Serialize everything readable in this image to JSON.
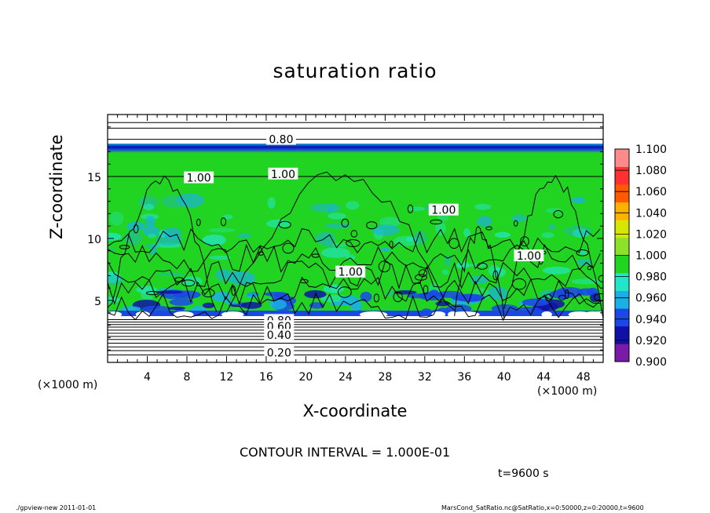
{
  "chart_data": {
    "type": "heatmap",
    "title": "saturation ratio",
    "xlabel": "X-coordinate",
    "ylabel": "Z-coordinate",
    "x_unit": "(×1000 m)",
    "z_unit": "(×1000 m)",
    "xlim": [
      0,
      50
    ],
    "ylim": [
      0,
      20
    ],
    "x_ticks": [
      4,
      8,
      12,
      16,
      20,
      24,
      28,
      32,
      36,
      40,
      44,
      48
    ],
    "y_ticks": [
      5,
      10,
      15
    ],
    "colorbar": {
      "levels": [
        "0.900",
        "0.920",
        "0.940",
        "0.960",
        "0.980",
        "1.000",
        "1.020",
        "1.040",
        "1.060",
        "1.080",
        "1.100"
      ],
      "colors": [
        "#7a1aa8",
        "#1010a8",
        "#1a48e6",
        "#1ab0e6",
        "#22e6c8",
        "#22d422",
        "#8ce22a",
        "#d6e600",
        "#ffb000",
        "#ff5a00",
        "#ff3030",
        "#ff8a8a"
      ]
    },
    "contour_labels": [
      {
        "text": "0.80",
        "x": 17.5,
        "z": 18.0
      },
      {
        "text": "1.00",
        "x": 9.2,
        "z": 14.9
      },
      {
        "text": "1.00",
        "x": 17.7,
        "z": 15.2
      },
      {
        "text": "1.00",
        "x": 33.9,
        "z": 12.3
      },
      {
        "text": "1.00",
        "x": 24.5,
        "z": 7.3
      },
      {
        "text": "1.00",
        "x": 42.5,
        "z": 8.6
      },
      {
        "text": "0.80",
        "x": 17.3,
        "z": 3.4
      },
      {
        "text": "0.60",
        "x": 17.3,
        "z": 2.9
      },
      {
        "text": "0.40",
        "x": 17.3,
        "z": 2.2
      },
      {
        "text": "0.20",
        "x": 17.3,
        "z": 0.8
      }
    ],
    "contour_interval": "CONTOUR INTERVAL = 1.000E-01",
    "time": "t=9600 s"
  },
  "footer": {
    "left": "./gpview-new   2011-01-01",
    "right": "MarsCond_SatRatio.nc@SatRatio,x=0:50000,z=0:20000,t=9600"
  }
}
